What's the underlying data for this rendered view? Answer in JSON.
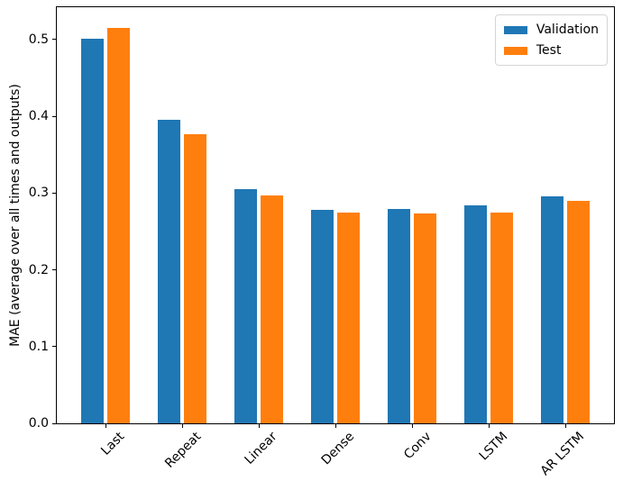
{
  "figure": {
    "background": "#ffffff",
    "spine_color": "#000000",
    "text_color": "#000000"
  },
  "legend": {
    "position": "upper-right",
    "border_color": "#d5d5d5"
  },
  "chart_data": {
    "type": "bar",
    "title": "",
    "xlabel": "",
    "ylabel": "MAE (average over all times and outputs)",
    "categories": [
      "Last",
      "Repeat",
      "Linear",
      "Dense",
      "Conv",
      "LSTM",
      "AR LSTM"
    ],
    "series": [
      {
        "name": "Validation",
        "color": "#1f77b4",
        "values": [
          0.501,
          0.395,
          0.305,
          0.278,
          0.279,
          0.284,
          0.296
        ]
      },
      {
        "name": "Test",
        "color": "#ff7f0e",
        "values": [
          0.515,
          0.377,
          0.297,
          0.274,
          0.273,
          0.275,
          0.29
        ]
      }
    ],
    "ylim": [
      0,
      0.542
    ],
    "yticks": [
      0.0,
      0.1,
      0.2,
      0.3,
      0.4,
      0.5
    ],
    "grid": false,
    "legend_position": "upper right",
    "xtick_rotation": 45
  }
}
